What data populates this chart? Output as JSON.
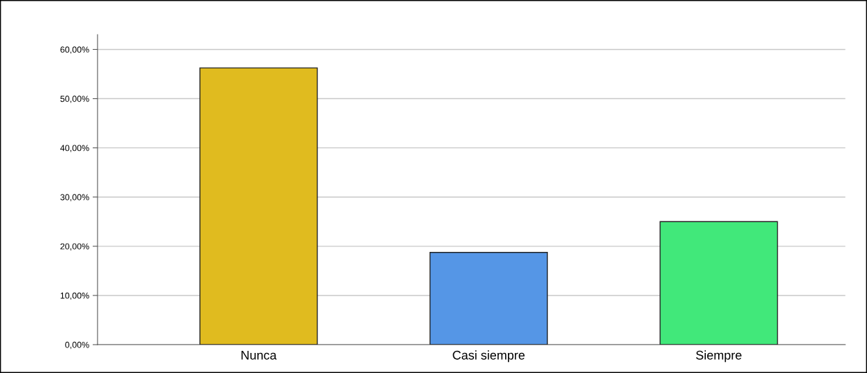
{
  "chart_data": {
    "type": "bar",
    "categories": [
      "Nunca",
      "Casi siempre",
      "Siempre"
    ],
    "values": [
      56.25,
      18.75,
      25
    ],
    "colors": [
      "#e0bb1f",
      "#5596e6",
      "#41e87a"
    ],
    "ylim": [
      0,
      63
    ],
    "yticks": [
      {
        "value": 0,
        "label": "0,00%"
      },
      {
        "value": 10,
        "label": "10,00%"
      },
      {
        "value": 20,
        "label": "20,00%"
      },
      {
        "value": 30,
        "label": "30,00%"
      },
      {
        "value": 40,
        "label": "40,00%"
      },
      {
        "value": 50,
        "label": "50,00%"
      },
      {
        "value": 60,
        "label": "60,00%"
      }
    ],
    "grid": "y"
  }
}
